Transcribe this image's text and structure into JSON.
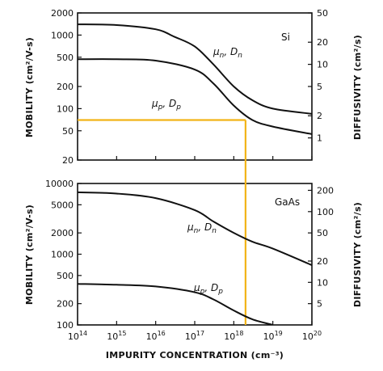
{
  "chart_data": [
    {
      "type": "line",
      "material": "Si",
      "xscale": "log",
      "yscale": "log",
      "y2scale": "log",
      "xlim": [
        100000000000000.0,
        1e+20
      ],
      "ylim": [
        20,
        2000
      ],
      "y2lim": [
        0.5,
        50
      ],
      "ylabel": "MOBILITY (cm²/V-s)",
      "y2label": "DIFFUSIVITY (cm²/s)",
      "yticks": [
        20,
        50,
        100,
        200,
        500,
        1000,
        2000
      ],
      "ytick_labels": [
        "20",
        "50",
        "100",
        "200",
        "500",
        "1000",
        "2000"
      ],
      "y2ticks": [
        1,
        2,
        5,
        10,
        20,
        50
      ],
      "y2tick_labels": [
        "1",
        "2",
        "5",
        "10",
        "20",
        "50"
      ],
      "series": [
        {
          "name": "μn, Dn",
          "x": [
            100000000000000.0,
            1000000000000000.0,
            1e+16,
            3e+16,
            1e+17,
            3e+17,
            1e+18,
            3e+18,
            1e+19,
            1e+20
          ],
          "y": [
            1400,
            1370,
            1200,
            950,
            700,
            400,
            200,
            130,
            100,
            85
          ]
        },
        {
          "name": "μp, Dp",
          "x": [
            100000000000000.0,
            1000000000000000.0,
            1e+16,
            1e+17,
            3e+17,
            1e+18,
            3e+18,
            1e+19,
            1e+20
          ],
          "y": [
            470,
            470,
            450,
            340,
            220,
            110,
            70,
            57,
            45
          ]
        }
      ],
      "grid": false,
      "marker": {
        "x": 2e+18,
        "y": 70
      }
    },
    {
      "type": "line",
      "material": "GaAs",
      "xscale": "log",
      "yscale": "log",
      "y2scale": "log",
      "xlim": [
        100000000000000.0,
        1e+20
      ],
      "ylim": [
        100,
        10000
      ],
      "y2lim": [
        2.5,
        250
      ],
      "ylabel": "MOBILITY (cm²/V-s)",
      "y2label": "DIFFUSIVITY (cm²/s)",
      "xlabel": "IMPURITY CONCENTRATION (cm⁻³)",
      "yticks": [
        100,
        200,
        500,
        1000,
        2000,
        5000,
        10000
      ],
      "ytick_labels": [
        "100",
        "200",
        "500",
        "1000",
        "2000",
        "5000",
        "10000"
      ],
      "y2ticks": [
        5,
        10,
        20,
        50,
        100,
        200
      ],
      "y2tick_labels": [
        "5",
        "10",
        "20",
        "50",
        "100",
        "200"
      ],
      "xticks": [
        100000000000000.0,
        1000000000000000.0,
        1e+16,
        1e+17,
        1e+18,
        1e+19,
        1e+20
      ],
      "xtick_exponents": [
        "14",
        "15",
        "16",
        "17",
        "18",
        "19",
        "20"
      ],
      "series": [
        {
          "name": "μn, Dn",
          "x": [
            100000000000000.0,
            1000000000000000.0,
            1e+16,
            1e+17,
            3e+17,
            1e+18,
            3e+18,
            1e+19,
            1e+20
          ],
          "y": [
            7500,
            7200,
            6200,
            4200,
            2900,
            2000,
            1500,
            1200,
            700
          ]
        },
        {
          "name": "μp, Dp",
          "x": [
            100000000000000.0,
            1000000000000000.0,
            1e+16,
            1e+17,
            3e+17,
            1e+18,
            3e+18,
            1e+19
          ],
          "y": [
            380,
            370,
            350,
            290,
            230,
            160,
            120,
            100
          ]
        }
      ],
      "grid": false,
      "marker": {
        "x": 2e+18,
        "y": 1800
      }
    }
  ],
  "labels": {
    "si": "Si",
    "gaas": "GaAs",
    "mu_n": "μ",
    "n_sub": "n",
    "d_n": ", D",
    "mu_p": "μ",
    "p_sub": "p",
    "d_p": ", D",
    "x_base": "10"
  },
  "colors": {
    "frame": "#111111",
    "curve": "#111111",
    "marker": "#f2b418"
  }
}
